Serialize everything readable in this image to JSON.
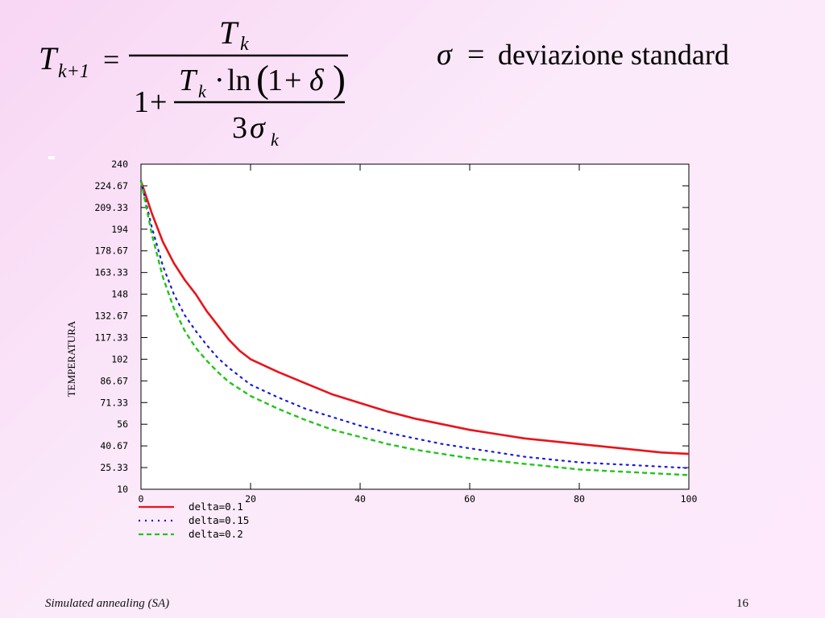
{
  "formula": {
    "T": "T",
    "sub_k1": "k+1",
    "sub_k": "k",
    "equals": "=",
    "one": "1",
    "plus": "+",
    "dot": "·",
    "ln": "ln",
    "delta": "δ",
    "three": "3",
    "sigma": "σ",
    "sigma_def": "deviazione standard"
  },
  "chart_data": {
    "type": "line",
    "xlabel": "",
    "ylabel": "TEMPERATURA",
    "xlim": [
      0,
      100
    ],
    "ylim": [
      10,
      240
    ],
    "x_ticks": [
      "0",
      "20",
      "40",
      "60",
      "80",
      "100"
    ],
    "y_ticks": [
      "240",
      "224.67",
      "209.33",
      "194",
      "178.67",
      "163.33",
      "148",
      "132.67",
      "117.33",
      "102",
      "86.67",
      "71.33",
      "56",
      "40.67",
      "25.33",
      "10"
    ],
    "grid": false,
    "legend_position": "bottom-left",
    "x": [
      0,
      2,
      4,
      6,
      8,
      10,
      12,
      14,
      16,
      18,
      20,
      25,
      30,
      35,
      40,
      45,
      50,
      55,
      60,
      65,
      70,
      75,
      80,
      85,
      90,
      95,
      100
    ],
    "series": [
      {
        "name": "delta=0.1",
        "color": "#e8141a",
        "style": "solid",
        "values": [
          228,
          205,
          185,
          170,
          158,
          148,
          136,
          126,
          116,
          108,
          102,
          93,
          85,
          77,
          71,
          65,
          60,
          56,
          52,
          49,
          46,
          44,
          42,
          40,
          38,
          36,
          35
        ]
      },
      {
        "name": "delta=0.15",
        "color": "#1a1ad6",
        "style": "dotted",
        "values": [
          228,
          195,
          168,
          148,
          133,
          122,
          112,
          103,
          96,
          90,
          84,
          75,
          67,
          61,
          55,
          50,
          46,
          42,
          39,
          36,
          33,
          31,
          29,
          28,
          27,
          26,
          25
        ]
      },
      {
        "name": "delta=0.2",
        "color": "#22c41a",
        "style": "dashed",
        "values": [
          228,
          190,
          160,
          138,
          122,
          110,
          101,
          93,
          86,
          81,
          76,
          67,
          59,
          52,
          47,
          42,
          38,
          35,
          32,
          30,
          28,
          26,
          24,
          23,
          22,
          21,
          20
        ]
      }
    ]
  },
  "footer": {
    "title": "Simulated annealing (SA)",
    "page": "16"
  }
}
